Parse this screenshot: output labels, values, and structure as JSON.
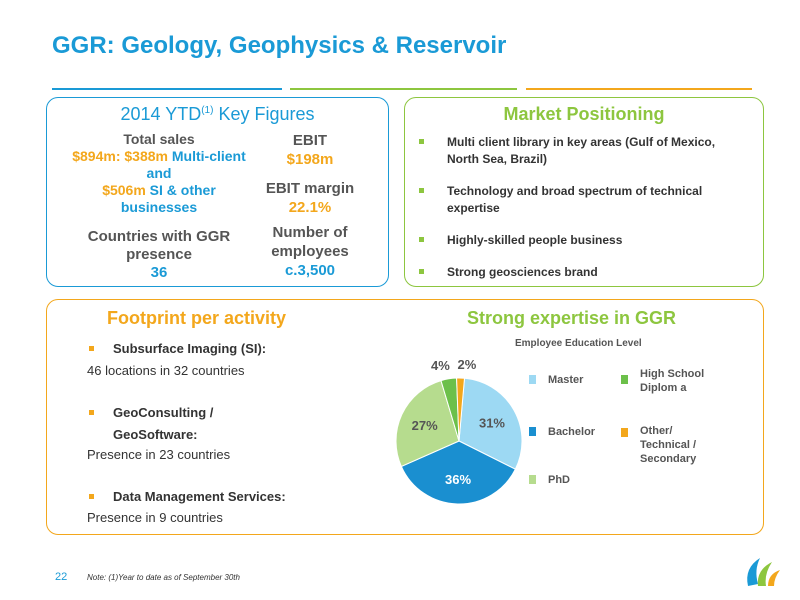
{
  "title": "GGR: Geology, Geophysics & Reservoir",
  "colors": {
    "blue": "#1a9ad6",
    "green": "#8dc63f",
    "orange": "#f3a71c",
    "lightgreen": "#b6dc8e"
  },
  "key_figures": {
    "title_main": "2014 YTD",
    "title_sup": "(1)",
    "title_rest": " Key Figures",
    "total_sales_label": "Total sales",
    "total_sales_value": "$894m",
    "multi_value": "$388m",
    "multi_label": "Multi-client and",
    "si_value": "$506m",
    "si_label": "SI & other businesses",
    "countries_label": "Countries with GGR presence",
    "countries_value": "36",
    "ebit_label": "EBIT",
    "ebit_value": "$198m",
    "ebit_margin_label": "EBIT margin",
    "ebit_margin_value": "22.1%",
    "employees_label": "Number of employees",
    "employees_value": "c.3,500"
  },
  "market": {
    "title": "Market Positioning",
    "items": [
      "Multi client library in key areas (Gulf of Mexico, North Sea, Brazil)",
      "Technology and broad spectrum of technical expertise",
      "Highly-skilled people business",
      "Strong geosciences brand"
    ]
  },
  "footprint": {
    "title": "Footprint per activity",
    "activities": [
      {
        "name": "Subsurface Imaging (SI):",
        "detail": "46 locations in 32 countries"
      },
      {
        "name": "GeoConsulting / GeoSoftware:",
        "detail": "Presence in 23 countries"
      },
      {
        "name": "Data Management Services:",
        "detail": "Presence in 9 countries"
      }
    ]
  },
  "expertise": {
    "title": "Strong expertise in GGR"
  },
  "chart_data": {
    "type": "pie",
    "title": "Employee Education Level",
    "categories": [
      "Master",
      "Bachelor",
      "PhD",
      "High School Diploma",
      "Other/ Technical / Secondary"
    ],
    "values": [
      31,
      36,
      27,
      4,
      2
    ],
    "value_labels": [
      "31%",
      "36%",
      "27%",
      "4%",
      "2%"
    ],
    "legend": [
      {
        "label": "Master",
        "color": "#9dd9f3"
      },
      {
        "label": "Bachelor",
        "color": "#1a8fd0"
      },
      {
        "label": "PhD",
        "color": "#b6dc8e"
      },
      {
        "label": "High School Diplom a",
        "color": "#6cc04a"
      },
      {
        "label": "Other/ Technical / Secondary",
        "color": "#f3a71c"
      }
    ],
    "legend_placement": "right"
  },
  "footer": {
    "page": "22",
    "note": "Note: (1)Year to date as of September 30th"
  }
}
